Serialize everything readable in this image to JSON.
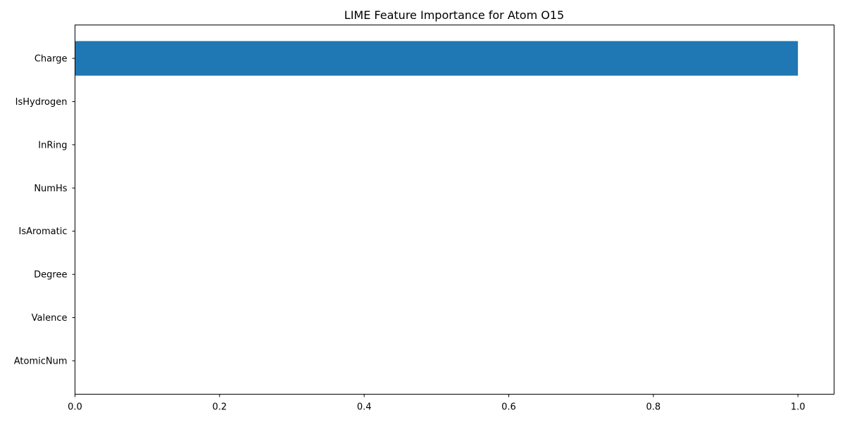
{
  "chart_data": {
    "type": "bar",
    "orientation": "horizontal",
    "title": "LIME Feature Importance for Atom O15",
    "xlabel": "",
    "ylabel": "",
    "categories": [
      "Charge",
      "IsHydrogen",
      "InRing",
      "NumHs",
      "IsAromatic",
      "Degree",
      "Valence",
      "AtomicNum"
    ],
    "values": [
      1.0,
      0,
      0,
      0,
      0,
      0,
      0,
      0
    ],
    "xlim": [
      0,
      1.05
    ],
    "xticks": [
      0.0,
      0.2,
      0.4,
      0.6,
      0.8,
      1.0
    ],
    "xtick_labels": [
      "0.0",
      "0.2",
      "0.4",
      "0.6",
      "0.8",
      "1.0"
    ],
    "bar_color": "#1f77b4",
    "grid": false,
    "legend": "none"
  }
}
